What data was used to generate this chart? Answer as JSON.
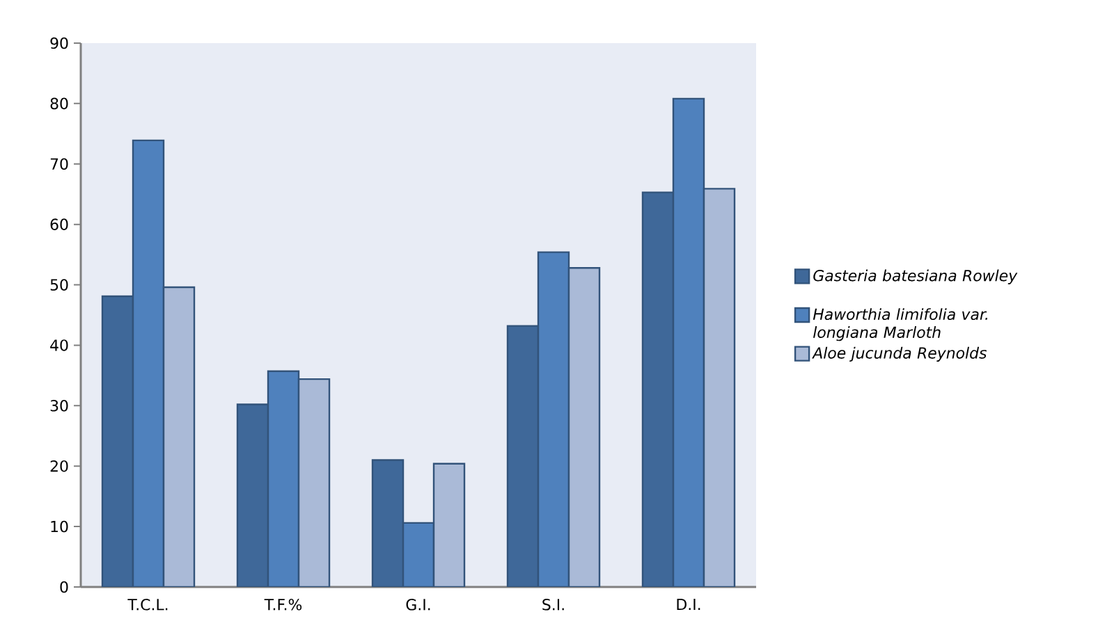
{
  "chart_data": {
    "type": "bar",
    "categories": [
      "T.C.L.",
      "T.F.%",
      "G.I.",
      "S.I.",
      "D.I."
    ],
    "series": [
      {
        "name": "Gasteria batesiana Rowley",
        "color": "#3f6899",
        "values": [
          48.1,
          30.2,
          21.0,
          43.2,
          65.3
        ]
      },
      {
        "name": "Haworthia limifolia var. longiana Marloth",
        "color": "#4f81bd",
        "values": [
          73.9,
          35.7,
          10.6,
          55.4,
          80.8
        ]
      },
      {
        "name": "Aloe jucunda Reynolds",
        "color": "#aabad7",
        "values": [
          49.6,
          34.4,
          20.4,
          52.8,
          65.9
        ]
      }
    ],
    "ylim": [
      0,
      90
    ],
    "yticks": [
      0,
      10,
      20,
      30,
      40,
      50,
      60,
      70,
      80,
      90
    ],
    "grid": false,
    "legend": "right"
  }
}
